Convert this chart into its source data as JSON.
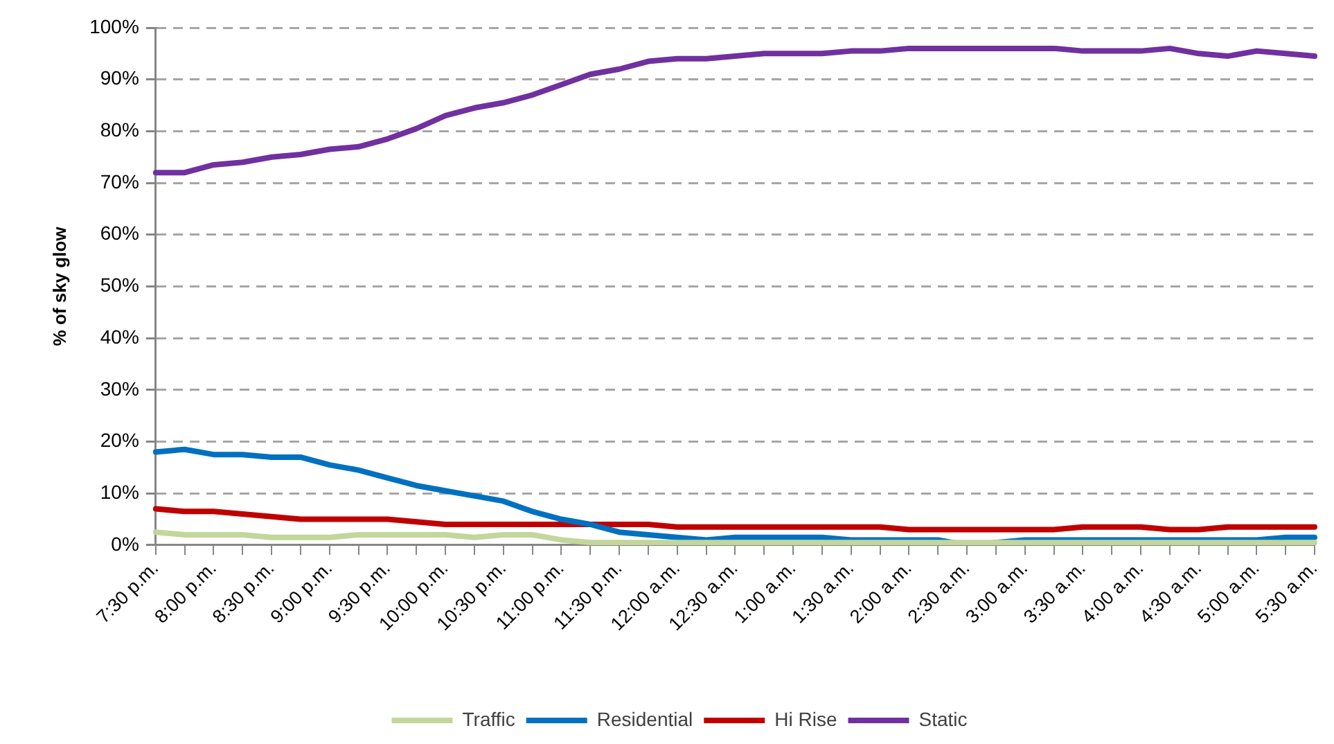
{
  "chart_data": {
    "type": "line",
    "ylabel": "% of sky glow",
    "categories": [
      "7:30 p.m.",
      null,
      "8:00 p.m.",
      null,
      "8:30 p.m.",
      null,
      "9:00 p.m.",
      null,
      "9:30 p.m.",
      null,
      "10:00 p.m.",
      null,
      "10:30 p.m.",
      null,
      "11:00 p.m.",
      null,
      "11:30 p.m.",
      null,
      "12:00 a.m.",
      null,
      "12:30 a.m.",
      null,
      "1:00 a.m.",
      null,
      "1:30 a.m.",
      null,
      "2:00 a.m.",
      null,
      "2:30 a.m.",
      null,
      "3:00 a.m.",
      null,
      "3:30 a.m.",
      null,
      "4:00 a.m.",
      null,
      "4:30 a.m.",
      null,
      "5:00 a.m.",
      null,
      "5:30 a.m."
    ],
    "series": [
      {
        "name": "Traffic",
        "color": "#c3d69b",
        "values": [
          2.5,
          2,
          2,
          2,
          1.5,
          1.5,
          1.5,
          2,
          2,
          2,
          2,
          1.5,
          2,
          2,
          1,
          0.5,
          0.5,
          0.5,
          0.5,
          0.5,
          0.5,
          0.5,
          0.5,
          0.5,
          0.5,
          0.5,
          0.5,
          0.5,
          0.5,
          0.5,
          0.5,
          0.5,
          0.5,
          0.5,
          0.5,
          0.5,
          0.5,
          0.5,
          0.5,
          0.5,
          0.5
        ]
      },
      {
        "name": "Residential",
        "color": "#0070c0",
        "values": [
          18,
          18.5,
          17.5,
          17.5,
          17,
          17,
          15.5,
          14.5,
          13,
          11.5,
          10.5,
          9.5,
          8.5,
          6.5,
          5,
          4,
          2.5,
          2,
          1.5,
          1,
          1.5,
          1.5,
          1.5,
          1.5,
          1,
          1,
          1,
          1,
          0,
          0.5,
          1,
          1,
          1,
          1,
          1,
          1,
          1,
          1,
          1,
          1.5,
          1.5
        ]
      },
      {
        "name": "Hi Rise",
        "color": "#c00000",
        "values": [
          7,
          6.5,
          6.5,
          6,
          5.5,
          5,
          5,
          5,
          5,
          4.5,
          4,
          4,
          4,
          4,
          4,
          4,
          4,
          4,
          3.5,
          3.5,
          3.5,
          3.5,
          3.5,
          3.5,
          3.5,
          3.5,
          3,
          3,
          3,
          3,
          3,
          3,
          3.5,
          3.5,
          3.5,
          3,
          3,
          3.5,
          3.5,
          3.5,
          3.5
        ]
      },
      {
        "name": "Static",
        "color": "#7030a0",
        "values": [
          72,
          72,
          73.5,
          74,
          75,
          75.5,
          76.5,
          77,
          78.5,
          80.5,
          83,
          84.5,
          85.5,
          87,
          89,
          91,
          92,
          93.5,
          94,
          94,
          94.5,
          95,
          95,
          95,
          95.5,
          95.5,
          96,
          96,
          96,
          96,
          96,
          96,
          95.5,
          95.5,
          95.5,
          96,
          95,
          94.5,
          95.5,
          95,
          94.5
        ]
      }
    ],
    "ylim": [
      0,
      100
    ],
    "yticks": [
      {
        "value": 0,
        "label": "0%"
      },
      {
        "value": 10,
        "label": "10%"
      },
      {
        "value": 20,
        "label": "20%"
      },
      {
        "value": 30,
        "label": "30%"
      },
      {
        "value": 40,
        "label": "40%"
      },
      {
        "value": 50,
        "label": "50%"
      },
      {
        "value": 60,
        "label": "60%"
      },
      {
        "value": 70,
        "label": "70%"
      },
      {
        "value": 80,
        "label": "80%"
      },
      {
        "value": 90,
        "label": "90%"
      },
      {
        "value": 100,
        "label": "100%"
      }
    ],
    "grid": "y",
    "legend": "bottom"
  }
}
